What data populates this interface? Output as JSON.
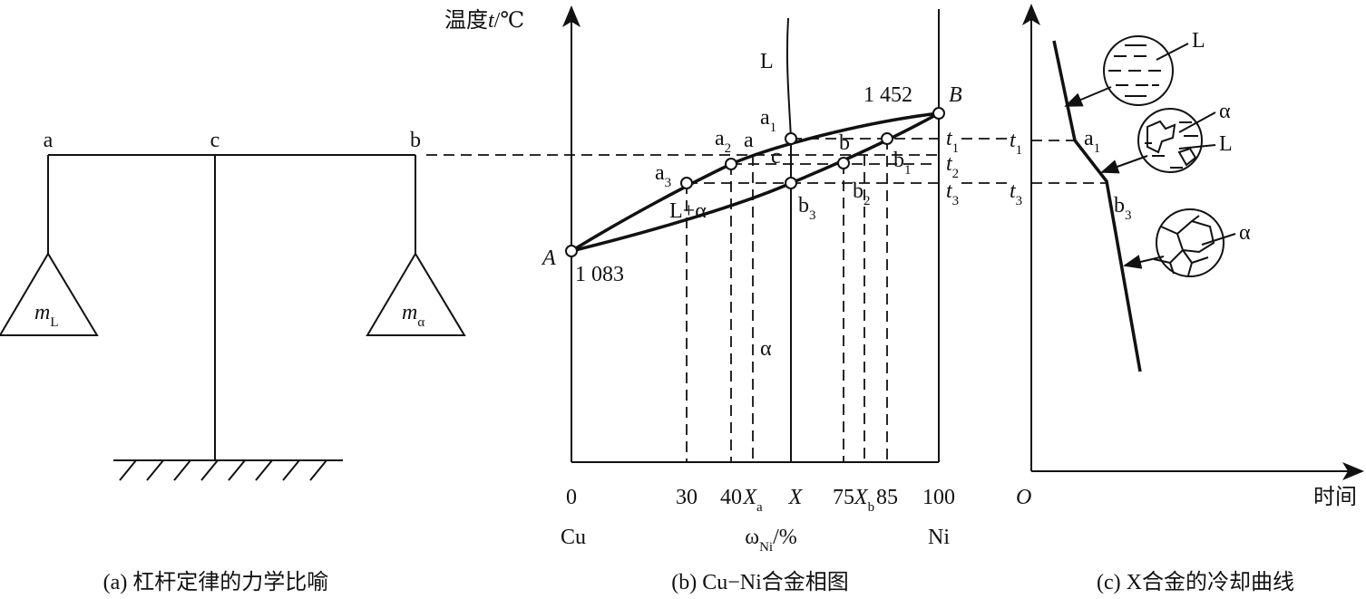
{
  "lever": {
    "left": "a",
    "pivot": "c",
    "right": "b",
    "mass_left": {
      "text": "m",
      "sub": "L"
    },
    "mass_right": {
      "text": "m",
      "sub": "α"
    },
    "caption": "(a) 杠杆定律的力学比喻"
  },
  "phase_diagram": {
    "y_axis_label": {
      "prefix": "温度",
      "var": "t",
      "suffix": "/℃"
    },
    "liquid": "L",
    "two_phase": "L+α",
    "solid": "α",
    "point_a": "A",
    "temp_a": "1 083",
    "point_b": "B",
    "temp_b": "1 452",
    "points": [
      {
        "text": "a",
        "sub": "1"
      },
      {
        "text": "a",
        "sub": "2"
      },
      "a",
      "c",
      "b",
      {
        "text": "a",
        "sub": "3"
      },
      {
        "text": "b",
        "sub": "1"
      },
      {
        "text": "b",
        "sub": "2"
      },
      {
        "text": "b",
        "sub": "3"
      }
    ],
    "temperatures": [
      {
        "text": "t",
        "sub": "1"
      },
      {
        "text": "t",
        "sub": "2"
      },
      {
        "text": "t",
        "sub": "3"
      }
    ],
    "x_ticks": [
      "0",
      "30",
      "40",
      {
        "text": "X",
        "sub": "a"
      },
      "X",
      "75",
      {
        "text": "X",
        "sub": "b"
      },
      "85",
      "100"
    ],
    "left_element": "Cu",
    "x_axis_label": {
      "text": "ω",
      "sub": "Ni",
      "suffix": "/%"
    },
    "right_element": "Ni",
    "caption": "(b) Cu−Ni合金相图"
  },
  "cooling_curve": {
    "temperatures": [
      {
        "text": "t",
        "sub": "1"
      },
      {
        "text": "t",
        "sub": "3"
      }
    ],
    "points": [
      {
        "text": "a",
        "sub": "1"
      },
      {
        "text": "b",
        "sub": "3"
      }
    ],
    "phases": [
      "L",
      "α",
      "L",
      "α"
    ],
    "origin": "O",
    "x_axis_label": "时间",
    "caption": "(c) X合金的冷却曲线"
  }
}
